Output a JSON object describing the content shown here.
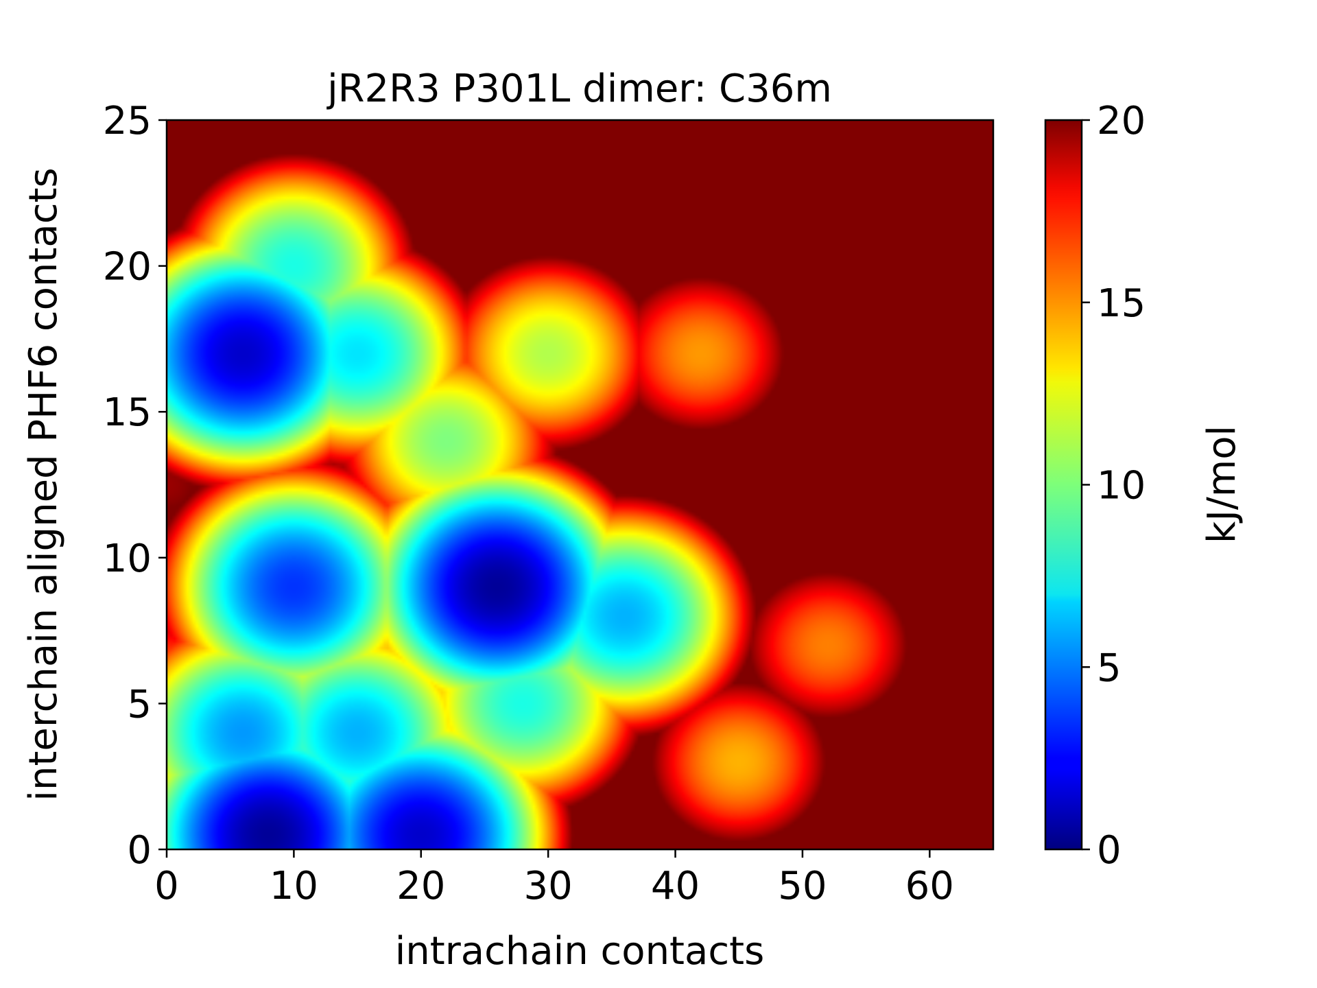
{
  "chart_data": {
    "type": "heatmap",
    "title": "jR2R3 P301L dimer: C36m",
    "xlabel": "intrachain contacts",
    "ylabel": "interchain aligned PHF6 contacts",
    "xlim": [
      0,
      65
    ],
    "ylim": [
      0,
      25
    ],
    "x_ticks": [
      0,
      10,
      20,
      30,
      40,
      50,
      60
    ],
    "y_ticks": [
      0,
      5,
      10,
      15,
      20,
      25
    ],
    "colorbar": {
      "label": "kJ/mol",
      "range": [
        0,
        20
      ],
      "ticks": [
        0,
        5,
        10,
        15,
        20
      ],
      "colormap": "jet"
    },
    "background_value": 20,
    "grid": false,
    "free_energy_basins": [
      {
        "x": 6,
        "y": 17,
        "value": 1.5
      },
      {
        "x": 26,
        "y": 9,
        "value": 0.5
      },
      {
        "x": 8,
        "y": 0.5,
        "value": 0.5
      },
      {
        "x": 20,
        "y": 0.5,
        "value": 1.5
      },
      {
        "x": 10,
        "y": 9,
        "value": 3.5
      },
      {
        "x": 6,
        "y": 4,
        "value": 5.5
      },
      {
        "x": 15,
        "y": 4,
        "value": 6
      },
      {
        "x": 28,
        "y": 5,
        "value": 8
      },
      {
        "x": 36,
        "y": 8,
        "value": 6
      },
      {
        "x": 15,
        "y": 17,
        "value": 7
      },
      {
        "x": 10,
        "y": 20,
        "value": 8
      },
      {
        "x": 30,
        "y": 17,
        "value": 11
      },
      {
        "x": 22,
        "y": 14,
        "value": 10
      },
      {
        "x": 42,
        "y": 17,
        "value": 14.5
      },
      {
        "x": 45,
        "y": 3,
        "value": 14
      },
      {
        "x": 52,
        "y": 7,
        "value": 15
      },
      {
        "x": 0,
        "y": 5.5,
        "value": 15
      },
      {
        "x": 0,
        "y": 12.5,
        "value": 19.5
      }
    ]
  }
}
